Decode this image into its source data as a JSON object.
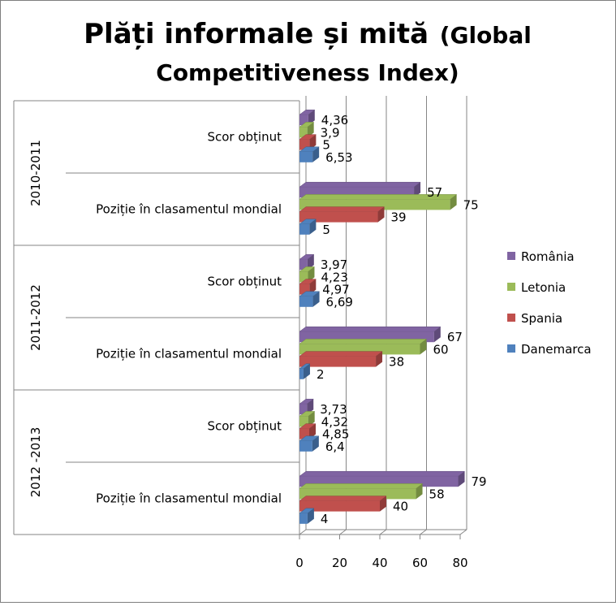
{
  "chart_data": {
    "type": "bar",
    "orientation": "horizontal",
    "title_line1": "Plăți informale și mită",
    "title_line1_suffix": "(Global",
    "title_line2": "Competitiveness Index)",
    "groups": [
      {
        "label": "2010-2011",
        "categories": [
          {
            "label": "Scor obținut",
            "values": {
              "România": 4.36,
              "Letonia": 3.9,
              "Spania": 5,
              "Danemarca": 6.53
            },
            "labels": {
              "România": "4,36",
              "Letonia": "3,9",
              "Spania": "5",
              "Danemarca": "6,53"
            }
          },
          {
            "label": "Poziție în clasamentul mondial",
            "values": {
              "România": 57,
              "Letonia": 75,
              "Spania": 39,
              "Danemarca": 5
            },
            "labels": {
              "România": "57",
              "Letonia": "75",
              "Spania": "39",
              "Danemarca": "5"
            }
          }
        ]
      },
      {
        "label": "2011-2012",
        "categories": [
          {
            "label": "Scor obținut",
            "values": {
              "România": 3.97,
              "Letonia": 4.23,
              "Spania": 4.97,
              "Danemarca": 6.69
            },
            "labels": {
              "România": "3,97",
              "Letonia": "4,23",
              "Spania": "4,97",
              "Danemarca": "6,69"
            }
          },
          {
            "label": "Poziție în clasamentul mondial",
            "values": {
              "România": 67,
              "Letonia": 60,
              "Spania": 38,
              "Danemarca": 2
            },
            "labels": {
              "România": "67",
              "Letonia": "60",
              "Spania": "38",
              "Danemarca": "2"
            }
          }
        ]
      },
      {
        "label": "2012 -2013",
        "categories": [
          {
            "label": "Scor obținut",
            "values": {
              "România": 3.73,
              "Letonia": 4.32,
              "Spania": 4.85,
              "Danemarca": 6.4
            },
            "labels": {
              "România": "3,73",
              "Letonia": "4,32",
              "Spania": "4,85",
              "Danemarca": "6,4"
            }
          },
          {
            "label": "Poziție în clasamentul mondial",
            "values": {
              "România": 79,
              "Letonia": 58,
              "Spania": 40,
              "Danemarca": 4
            },
            "labels": {
              "România": "79",
              "Letonia": "58",
              "Spania": "40",
              "Danemarca": "4"
            }
          }
        ]
      }
    ],
    "series": [
      {
        "name": "România",
        "color": "#8064a2",
        "dark": "#5f4a79"
      },
      {
        "name": "Letonia",
        "color": "#9bbb59",
        "dark": "#738c40"
      },
      {
        "name": "Spania",
        "color": "#c0504d",
        "dark": "#8f3b39"
      },
      {
        "name": "Danemarca",
        "color": "#4f81bd",
        "dark": "#3a5f8c"
      }
    ],
    "legend_order": [
      "România",
      "Letonia",
      "Spania",
      "Danemarca"
    ],
    "bar_order_top_to_bottom": [
      "România",
      "Letonia",
      "Spania",
      "Danemarca"
    ],
    "xlim": [
      0,
      80
    ],
    "xticks": [
      0,
      20,
      40,
      60,
      80
    ],
    "grid": true,
    "legend_position": "right"
  }
}
